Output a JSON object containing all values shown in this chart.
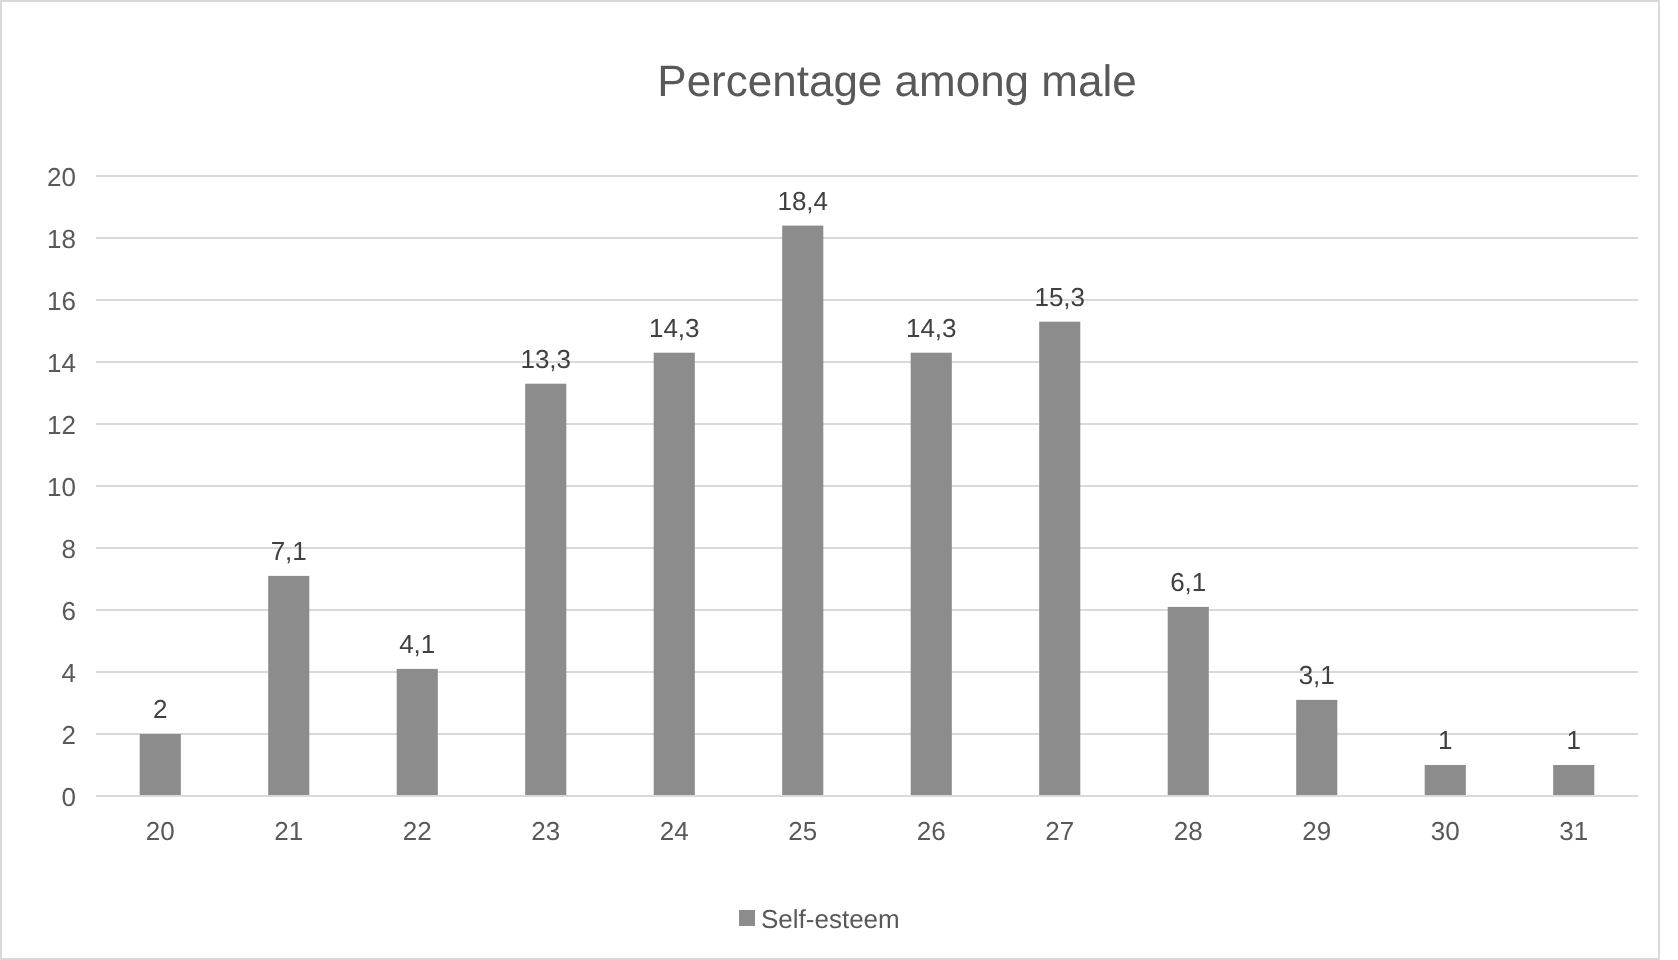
{
  "chart_data": {
    "type": "bar",
    "title": "Percentage among male",
    "categories": [
      "20",
      "21",
      "22",
      "23",
      "24",
      "25",
      "26",
      "27",
      "28",
      "29",
      "30",
      "31"
    ],
    "series": [
      {
        "name": "Self-esteem",
        "color": "#8c8c8c",
        "values": [
          2,
          7.1,
          4.1,
          13.3,
          14.3,
          18.4,
          14.3,
          15.3,
          6.1,
          3.1,
          1,
          1
        ],
        "value_labels": [
          "2",
          "7,1",
          "4,1",
          "13,3",
          "14,3",
          "18,4",
          "14,3",
          "15,3",
          "6,1",
          "3,1",
          "1",
          "1"
        ]
      }
    ],
    "ylim": [
      0,
      20
    ],
    "yticks": [
      0,
      2,
      4,
      6,
      8,
      10,
      12,
      14,
      16,
      18,
      20
    ],
    "grid": "y",
    "legend": "bottom"
  }
}
